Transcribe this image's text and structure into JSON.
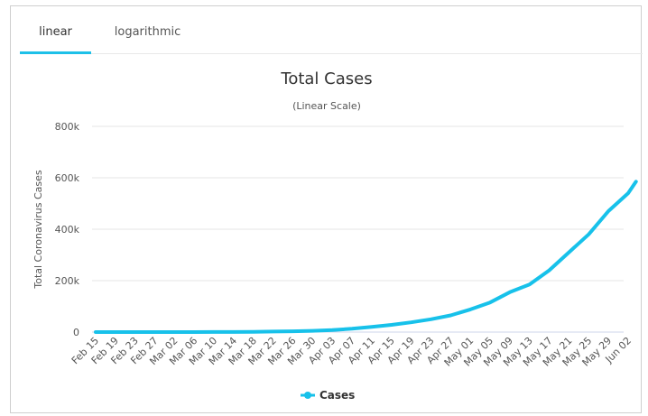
{
  "tabs": [
    {
      "label": "linear",
      "active": true
    },
    {
      "label": "logarithmic",
      "active": false
    }
  ],
  "colors": {
    "accent": "#1ec0e8",
    "series": "#17c1ea",
    "grid": "#e6e6e6",
    "text": "#333333"
  },
  "chart_data": {
    "type": "line",
    "title": "Total Cases",
    "subtitle": "(Linear Scale)",
    "xlabel": "",
    "ylabel": "Total Coronavirus Cases",
    "ylim": [
      0,
      800000
    ],
    "yticks": [
      0,
      200000,
      400000,
      600000,
      800000
    ],
    "ytick_labels": [
      "0",
      "200k",
      "400k",
      "600k",
      "800k"
    ],
    "xtick_labels": [
      "Feb 15",
      "Feb 19",
      "Feb 23",
      "Feb 27",
      "Mar 02",
      "Mar 06",
      "Mar 10",
      "Mar 14",
      "Mar 18",
      "Mar 22",
      "Mar 26",
      "Mar 30",
      "Apr 03",
      "Apr 07",
      "Apr 11",
      "Apr 15",
      "Apr 19",
      "Apr 23",
      "Apr 27",
      "May 01",
      "May 05",
      "May 09",
      "May 13",
      "May 17",
      "May 21",
      "May 25",
      "May 29",
      "Jun 02"
    ],
    "grid": true,
    "legend": "bottom-center",
    "series": [
      {
        "name": "Cases",
        "x": [
          "Feb 15",
          "Feb 19",
          "Feb 23",
          "Feb 27",
          "Mar 02",
          "Mar 06",
          "Mar 10",
          "Mar 14",
          "Mar 18",
          "Mar 22",
          "Mar 26",
          "Mar 30",
          "Apr 03",
          "Apr 07",
          "Apr 11",
          "Apr 15",
          "Apr 19",
          "Apr 23",
          "Apr 27",
          "May 01",
          "May 05",
          "May 09",
          "May 13",
          "May 17",
          "May 21",
          "May 25",
          "May 29",
          "Jun 02",
          "Jun 04"
        ],
        "values": [
          0,
          0,
          0,
          0,
          0,
          100,
          200,
          400,
          1000,
          2000,
          3000,
          5000,
          8000,
          13000,
          20000,
          28000,
          38000,
          50000,
          65000,
          88000,
          115000,
          155000,
          185000,
          240000,
          310000,
          380000,
          470000,
          540000,
          585000
        ]
      }
    ]
  }
}
